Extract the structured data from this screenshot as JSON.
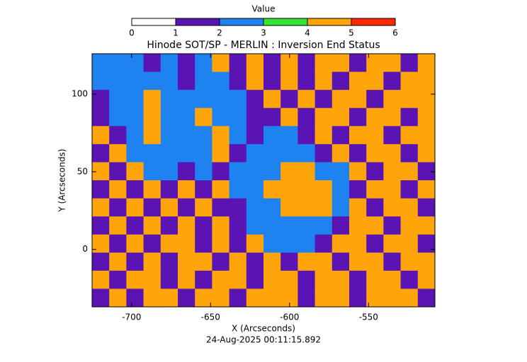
{
  "chart_data": {
    "type": "heatmap",
    "title": "Hinode SOT/SP - MERLIN : Inversion End Status",
    "x_label": "X (Arcseconds)",
    "y_label": "Y (Arcseconds)",
    "footer": "24-Aug-2025 00:11:15.892",
    "xlim": [
      -725,
      -508
    ],
    "ylim": [
      -37,
      126
    ],
    "xticks": [
      -700,
      -650,
      -600,
      -550
    ],
    "yticks": [
      0,
      50,
      100
    ],
    "colorbar": {
      "label": "Value",
      "ticks": [
        0,
        1,
        2,
        3,
        4,
        5,
        6
      ],
      "colors": [
        "#ffffff",
        "#5a14b4",
        "#1e82f0",
        "#32e632",
        "#ffa50a",
        "#ff2800"
      ]
    },
    "z": [
      [
        2,
        2,
        2,
        1,
        2,
        1,
        2,
        4,
        1,
        4,
        1,
        4,
        1,
        4,
        4,
        1,
        4,
        4,
        1,
        4
      ],
      [
        2,
        2,
        2,
        2,
        2,
        1,
        2,
        2,
        1,
        4,
        1,
        4,
        1,
        4,
        1,
        4,
        4,
        1,
        4,
        4
      ],
      [
        1,
        2,
        2,
        4,
        2,
        2,
        2,
        2,
        2,
        1,
        4,
        1,
        4,
        1,
        4,
        4,
        1,
        4,
        4,
        4
      ],
      [
        1,
        2,
        2,
        4,
        2,
        2,
        4,
        2,
        2,
        1,
        1,
        4,
        1,
        4,
        4,
        1,
        4,
        4,
        1,
        4
      ],
      [
        4,
        1,
        2,
        4,
        2,
        2,
        2,
        4,
        2,
        1,
        2,
        2,
        1,
        4,
        1,
        4,
        4,
        1,
        4,
        4
      ],
      [
        1,
        4,
        2,
        2,
        2,
        2,
        2,
        4,
        1,
        2,
        2,
        2,
        2,
        1,
        4,
        1,
        4,
        4,
        1,
        4
      ],
      [
        4,
        1,
        4,
        2,
        2,
        1,
        2,
        1,
        2,
        2,
        2,
        4,
        4,
        2,
        2,
        4,
        1,
        4,
        4,
        1
      ],
      [
        1,
        4,
        1,
        4,
        1,
        4,
        1,
        4,
        2,
        2,
        4,
        4,
        4,
        4,
        2,
        1,
        4,
        4,
        1,
        4
      ],
      [
        4,
        1,
        4,
        1,
        4,
        1,
        4,
        1,
        1,
        2,
        2,
        4,
        4,
        4,
        2,
        4,
        1,
        4,
        4,
        1
      ],
      [
        1,
        4,
        1,
        4,
        1,
        4,
        1,
        4,
        1,
        2,
        2,
        2,
        2,
        2,
        1,
        4,
        4,
        1,
        4,
        4
      ],
      [
        4,
        1,
        4,
        1,
        4,
        4,
        1,
        4,
        1,
        4,
        2,
        2,
        2,
        1,
        4,
        4,
        1,
        4,
        4,
        1
      ],
      [
        1,
        4,
        1,
        4,
        1,
        4,
        4,
        1,
        4,
        1,
        4,
        1,
        4,
        4,
        1,
        4,
        4,
        1,
        4,
        4
      ],
      [
        4,
        1,
        4,
        4,
        1,
        4,
        1,
        4,
        4,
        1,
        4,
        4,
        1,
        4,
        4,
        1,
        4,
        4,
        1,
        4
      ],
      [
        1,
        4,
        1,
        4,
        4,
        1,
        4,
        4,
        1,
        4,
        4,
        4,
        1,
        4,
        4,
        1,
        4,
        4,
        4,
        1
      ]
    ]
  }
}
